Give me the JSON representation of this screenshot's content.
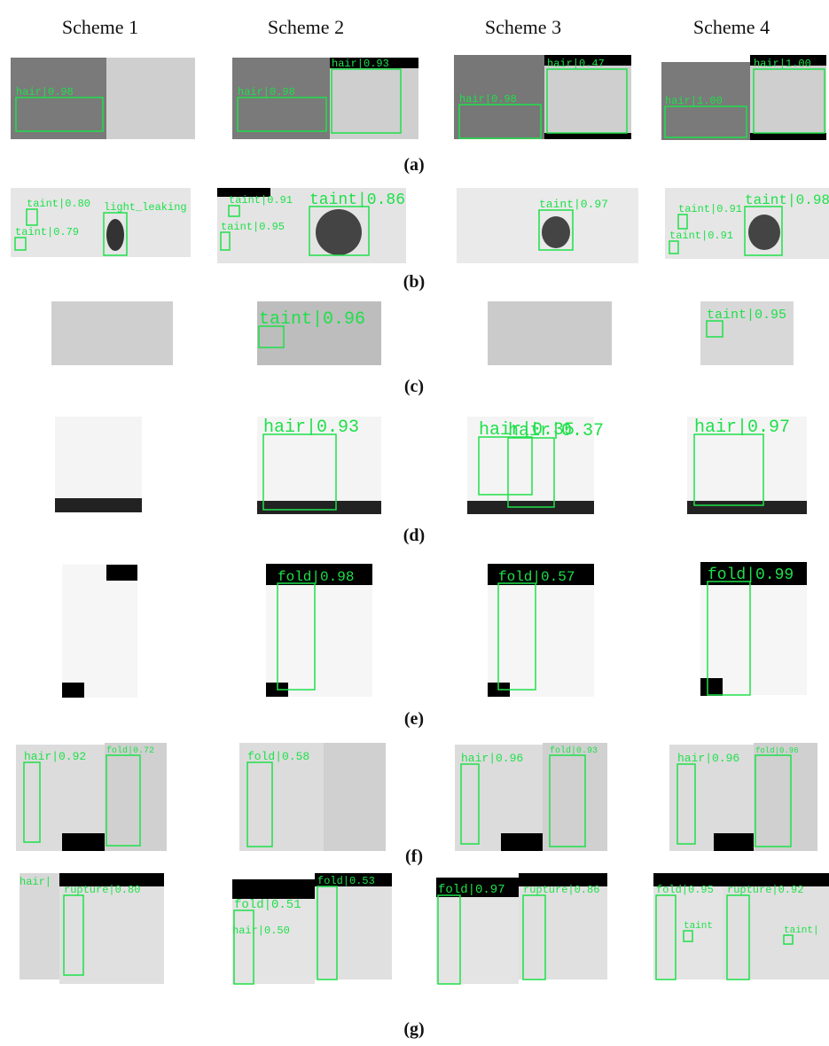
{
  "headers": [
    "Scheme 1",
    "Scheme 2",
    "Scheme 3",
    "Scheme 4"
  ],
  "rows": [
    {
      "label": "(a)",
      "cells": [
        {
          "detections": [
            "hair|0.98"
          ]
        },
        {
          "detections": [
            "hair|0.98",
            "hair|0.93"
          ]
        },
        {
          "detections": [
            "hair|0.98",
            "hair|0.47"
          ]
        },
        {
          "detections": [
            "hair|1.00",
            "hair|1.00"
          ]
        }
      ]
    },
    {
      "label": "(b)",
      "cells": [
        {
          "detections": [
            "taint|0.80",
            "taint|0.79",
            "light_leaking"
          ]
        },
        {
          "detections": [
            "taint|0.91",
            "taint|0.95",
            "taint|0.86"
          ]
        },
        {
          "detections": [
            "taint|0.97"
          ]
        },
        {
          "detections": [
            "taint|0.91",
            "taint|0.91",
            "taint|0.98"
          ]
        }
      ]
    },
    {
      "label": "(c)",
      "cells": [
        {
          "detections": []
        },
        {
          "detections": [
            "taint|0.96"
          ]
        },
        {
          "detections": []
        },
        {
          "detections": [
            "taint|0.95"
          ]
        }
      ]
    },
    {
      "label": "(d)",
      "cells": [
        {
          "detections": []
        },
        {
          "detections": [
            "hair|0.93"
          ]
        },
        {
          "detections": [
            "hair|0.35",
            "hair|0.37"
          ]
        },
        {
          "detections": [
            "hair|0.97"
          ]
        }
      ]
    },
    {
      "label": "(e)",
      "cells": [
        {
          "detections": []
        },
        {
          "detections": [
            "fold|0.98"
          ]
        },
        {
          "detections": [
            "fold|0.57"
          ]
        },
        {
          "detections": [
            "fold|0.99"
          ]
        }
      ]
    },
    {
      "label": "(f)",
      "cells": [
        {
          "detections": [
            "hair|0.92",
            "fold|0.72"
          ]
        },
        {
          "detections": [
            "fold|0.58"
          ]
        },
        {
          "detections": [
            "hair|0.96",
            "fold|0.93"
          ]
        },
        {
          "detections": [
            "hair|0.96",
            "fold|0.96"
          ]
        }
      ]
    },
    {
      "label": "(g)",
      "cells": [
        {
          "detections": [
            "hair|",
            "rupture|0.80"
          ]
        },
        {
          "detections": [
            "fold|0.51",
            "fold|0.53",
            "hair|0.50"
          ]
        },
        {
          "detections": [
            "fold|0.97",
            "rupture|0.86"
          ]
        },
        {
          "detections": [
            "fold|0.95",
            "rupture|0.92",
            "taint",
            "taint|"
          ]
        }
      ]
    }
  ]
}
